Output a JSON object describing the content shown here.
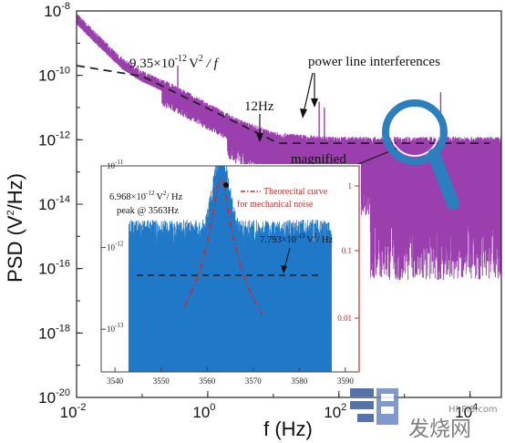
{
  "chart_data": [
    {
      "type": "line",
      "xlabel": "f (Hz)",
      "ylabel": "PSD (V²/Hz)",
      "x_scale": "log",
      "y_scale": "log",
      "xlim": [
        0.01,
        30000
      ],
      "ylim": [
        1e-20,
        1e-08
      ],
      "x_ticks": [
        0.01,
        1,
        100,
        10000
      ],
      "y_ticks": [
        1e-08,
        1e-10,
        1e-12,
        1e-14,
        1e-16,
        1e-18,
        1e-20
      ],
      "x_tick_labels": [
        {
          "b": "10",
          "e": "-2"
        },
        {
          "b": "10",
          "e": "0"
        },
        {
          "b": "10",
          "e": "2"
        },
        {
          "b": "10",
          "e": "4"
        }
      ],
      "y_tick_labels": [
        {
          "b": "10",
          "e": "-8"
        },
        {
          "b": "10",
          "e": "-10"
        },
        {
          "b": "10",
          "e": "-12"
        },
        {
          "b": "10",
          "e": "-14"
        },
        {
          "b": "10",
          "e": "-16"
        },
        {
          "b": "10",
          "e": "-18"
        },
        {
          "b": "10",
          "e": "-20"
        }
      ],
      "series": [
        {
          "color": "#9b3fae",
          "envelope": [
            [
              0.01,
              5e-09
            ],
            [
              0.02,
              1.2e-09
            ],
            [
              0.05,
              2e-10
            ],
            [
              0.1,
              8e-11
            ],
            [
              0.3,
              3e-11
            ],
            [
              1,
              8e-12
            ],
            [
              3,
              2.5e-12
            ],
            [
              10,
              1e-12
            ],
            [
              30,
              8e-13
            ],
            [
              100,
              7e-13
            ],
            [
              300,
              7e-13
            ],
            [
              1000,
              7e-13
            ],
            [
              3000,
              7e-13
            ],
            [
              10000,
              7e-13
            ],
            [
              20000,
              7e-13
            ]
          ],
          "spikes": [
            [
              0.35,
              2e-10
            ],
            [
              0.5,
              3e-11
            ],
            [
              50,
              1.5e-11
            ],
            [
              60,
              1e-11
            ],
            [
              3563,
              3e-11
            ]
          ]
        },
        {
          "color": "#222222",
          "dashed": true,
          "points": [
            [
              0.01,
              2e-10
            ],
            [
              0.1,
              9.35e-11
            ],
            [
              1,
              9.35e-12
            ],
            [
              10,
              9.35e-13
            ],
            [
              12,
              7.8e-13
            ],
            [
              100,
              7.8e-13
            ],
            [
              1000,
              7.8e-13
            ],
            [
              20000,
              7.8e-13
            ]
          ]
        }
      ],
      "annotations": {
        "power_law": {
          "coef": "9.35×10",
          "exp": "-12",
          "unit": "V",
          "unit_exp": "2",
          "tail": " / f"
        },
        "knee": "12Hz",
        "power_line": "power line interferences",
        "magnified": "magnified"
      }
    },
    {
      "type": "line",
      "x_ticks": [
        3540,
        3550,
        3560,
        3570,
        3580,
        3590
      ],
      "xlim": [
        3537,
        3593
      ],
      "ylim": [
        3e-14,
        1e-11
      ],
      "y_tick_labels": [
        {
          "b": "10",
          "e": "-11"
        },
        {
          "b": "10",
          "e": "-12"
        },
        {
          "b": "10",
          "e": "-13"
        }
      ],
      "right_ticks": [
        "1",
        "0.1",
        "0.01"
      ],
      "series": [
        {
          "color": "#1f78c8",
          "baseline_psd": 7.793e-13,
          "band": [
            3543,
            3587
          ]
        },
        {
          "color": "#cc2b2b",
          "dash": "dash-dot",
          "peak_psd": 6.968e-12,
          "peak_f": 3563,
          "half_width_hz": 1.3
        }
      ],
      "annotations": {
        "peak": {
          "coef": "6.968×10",
          "exp": "-12",
          "unit": "V",
          "unit_exp": "2",
          "tail": "/ Hz",
          "line2": "peak @ 3563Hz"
        },
        "baseline": {
          "coef": "7.793×10",
          "exp": "-13",
          "unit": "V",
          "unit_exp": "2",
          "tail": "/ Hz"
        },
        "legend_line1": "Theorecital curve",
        "legend_line2": "for mechanical noise"
      }
    }
  ],
  "watermark": {
    "site": "HI-FI8.com",
    "brand": "发烧网"
  },
  "colors": {
    "magenta": "#9b3fae",
    "blue": "#1f78c8",
    "red": "#cc2b2b",
    "magnifier": "#2c7fbf"
  }
}
